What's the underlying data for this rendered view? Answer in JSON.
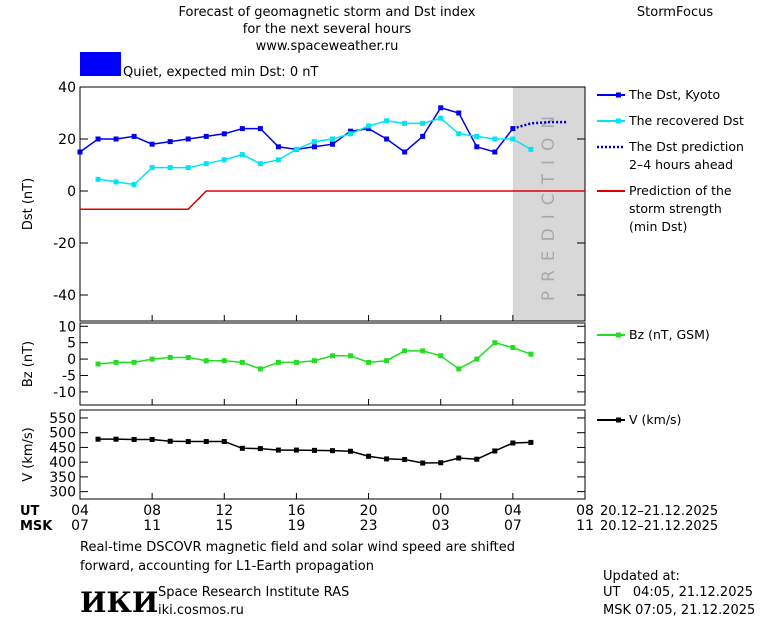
{
  "header": {
    "title_lines": [
      "Forecast of geomagnetic storm and Dst index",
      "for the next several hours",
      "www.spaceweather.ru"
    ],
    "brand": "StormFocus",
    "quiet_label": "Quiet, expected min Dst: 0 nT",
    "quiet_color": "#0000ff"
  },
  "x_axis": {
    "xlim": [
      4,
      32
    ],
    "ut_label": "UT",
    "msk_label": "MSK",
    "ut_ticks": [
      {
        "value": 4,
        "label": "04"
      },
      {
        "value": 8,
        "label": "08"
      },
      {
        "value": 12,
        "label": "12"
      },
      {
        "value": 16,
        "label": "16"
      },
      {
        "value": 20,
        "label": "20"
      },
      {
        "value": 24,
        "label": "00"
      },
      {
        "value": 28,
        "label": "04"
      },
      {
        "value": 32,
        "label": "08"
      }
    ],
    "msk_ticks": [
      {
        "value": 4,
        "label": "07"
      },
      {
        "value": 8,
        "label": "11"
      },
      {
        "value": 12,
        "label": "15"
      },
      {
        "value": 16,
        "label": "19"
      },
      {
        "value": 20,
        "label": "23"
      },
      {
        "value": 24,
        "label": "03"
      },
      {
        "value": 28,
        "label": "07"
      },
      {
        "value": 32,
        "label": "11"
      }
    ],
    "ut_date_range": "20.12–21.12.2025",
    "msk_date_range": "20.12–21.12.2025"
  },
  "chart_data": [
    {
      "type": "line",
      "ylabel": "Dst (nT)",
      "ylim": [
        -50,
        40
      ],
      "yticks": [
        -40,
        -20,
        0,
        20,
        40
      ],
      "prediction_label": "PREDICTION",
      "prediction_region": [
        28,
        32
      ],
      "series": [
        {
          "name": "The Dst, Kyoto",
          "color": "#0000ee",
          "marker": true,
          "x": [
            4,
            5,
            6,
            7,
            8,
            9,
            10,
            11,
            12,
            13,
            14,
            15,
            16,
            17,
            18,
            19,
            20,
            21,
            22,
            23,
            24,
            25,
            26,
            27,
            28
          ],
          "values": [
            15,
            20,
            20,
            21,
            18,
            19,
            20,
            21,
            22,
            24,
            24,
            17,
            16,
            17,
            18,
            23,
            24,
            20,
            15,
            21,
            32,
            30,
            17,
            15,
            24
          ]
        },
        {
          "name": "The recovered Dst",
          "color": "#00e5f0",
          "marker": true,
          "x": [
            5,
            6,
            7,
            8,
            9,
            10,
            11,
            12,
            13,
            14,
            15,
            16,
            17,
            18,
            19,
            20,
            21,
            22,
            23,
            24,
            25,
            26,
            27,
            28,
            29
          ],
          "values": [
            4.5,
            3.5,
            2.5,
            9,
            9,
            9,
            10.5,
            12,
            14,
            10.5,
            12,
            16,
            19,
            20,
            22,
            25,
            27,
            26,
            26,
            28,
            22,
            21,
            20,
            20,
            16
          ]
        },
        {
          "name": "The Dst prediction\n2–4 hours ahead",
          "color": "#0000cc",
          "dash": "2,2",
          "x": [
            28,
            29,
            30,
            31
          ],
          "values": [
            24,
            26,
            26.5,
            26.5
          ]
        },
        {
          "name": "Prediction of the\nstorm strength\n(min Dst)",
          "color": "#dd0000",
          "x": [
            4,
            10,
            11,
            32
          ],
          "values": [
            -7,
            -7,
            0,
            0
          ]
        }
      ]
    },
    {
      "type": "line",
      "ylabel": "Bz (nT)",
      "ylim": [
        -14,
        11
      ],
      "yticks": [
        -10,
        -5,
        0,
        5,
        10
      ],
      "series": [
        {
          "name": "Bz (nT, GSM)",
          "color": "#22dd22",
          "marker": true,
          "x": [
            5,
            6,
            7,
            8,
            9,
            10,
            11,
            12,
            13,
            14,
            15,
            16,
            17,
            18,
            19,
            20,
            21,
            22,
            23,
            24,
            25,
            26,
            27,
            28,
            29
          ],
          "values": [
            -1.5,
            -1,
            -1,
            0,
            0.5,
            0.5,
            -0.5,
            -0.5,
            -1,
            -3,
            -1,
            -1,
            -0.5,
            1,
            1,
            -1,
            -0.5,
            2.5,
            2.5,
            1,
            -3,
            0,
            5,
            3.5,
            1.5
          ]
        }
      ]
    },
    {
      "type": "line",
      "ylabel": "V (km/s)",
      "ylim": [
        275,
        577
      ],
      "yticks": [
        300,
        350,
        400,
        450,
        500,
        550
      ],
      "series": [
        {
          "name": "V (km/s)",
          "color": "#000000",
          "marker": true,
          "x": [
            5,
            6,
            7,
            8,
            9,
            10,
            11,
            12,
            13,
            14,
            15,
            16,
            17,
            18,
            19,
            20,
            21,
            22,
            23,
            24,
            25,
            26,
            27,
            28,
            29
          ],
          "values": [
            478,
            478,
            477,
            477,
            471,
            470,
            470,
            470,
            447,
            446,
            441,
            441,
            440,
            439,
            437,
            420,
            411,
            409,
            397,
            398,
            414,
            410,
            438,
            465,
            467
          ]
        }
      ]
    }
  ],
  "footer": {
    "note": "Real-time DSCOVR magnetic field and solar wind speed are shifted\nforward, accounting for L1-Earth propagation",
    "logo": "ИКИ",
    "institute": "Space Research Institute RAS",
    "site": "iki.cosmos.ru",
    "updated_label": "Updated at:",
    "updated_ut": "UT   04:05, 21.12.2025",
    "updated_msk": "MSK 07:05, 21.12.2025"
  }
}
